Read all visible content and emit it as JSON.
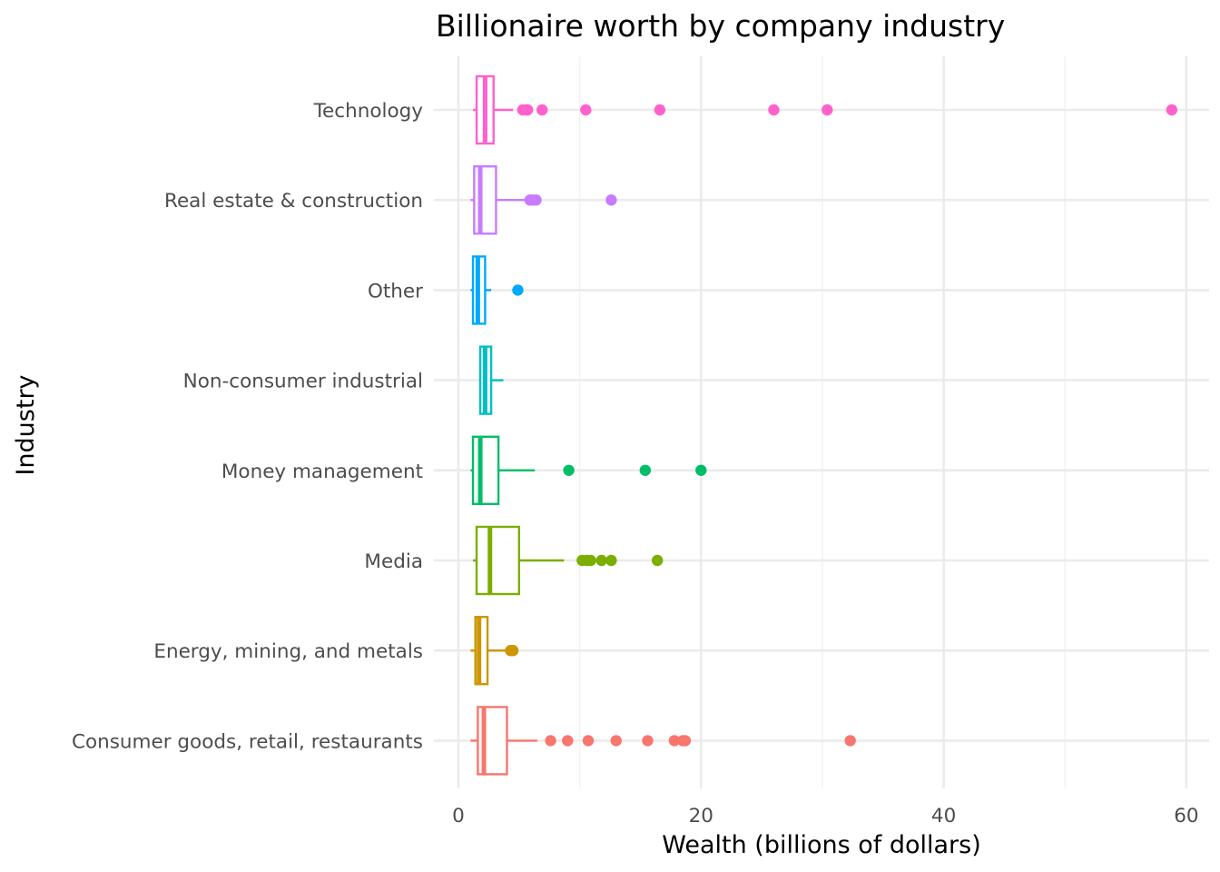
{
  "chart_data": {
    "type": "boxplot",
    "orientation": "horizontal",
    "title": "Billionaire worth by company industry",
    "xlabel": "Wealth (billions of dollars)",
    "ylabel": "Industry",
    "xlim": [
      -0.5,
      61.5
    ],
    "x_ticks": [
      0,
      20,
      40,
      60
    ],
    "grid": true,
    "legend": "none",
    "categories": [
      "Consumer goods, retail, restaurants",
      "Energy, mining, and metals",
      "Media",
      "Money management",
      "Non-consumer industrial",
      "Other",
      "Real estate & construction",
      "Technology"
    ],
    "series": [
      {
        "category": "Consumer goods, retail, restaurants",
        "color": "#F8766D",
        "min": 1.0,
        "q1": 1.6,
        "median": 2.1,
        "q3": 4.0,
        "max": 6.5,
        "outliers": [
          7.6,
          9.0,
          10.7,
          13.0,
          15.6,
          17.8,
          18.5,
          18.7,
          32.3
        ]
      },
      {
        "category": "Energy, mining, and metals",
        "color": "#CD9600",
        "min": 1.0,
        "q1": 1.4,
        "median": 1.7,
        "q3": 2.4,
        "max": 3.9,
        "outliers": [
          4.3,
          4.5
        ]
      },
      {
        "category": "Media",
        "color": "#7CAE00",
        "min": 1.2,
        "q1": 1.5,
        "median": 2.6,
        "q3": 5.0,
        "max": 8.7,
        "outliers": [
          10.2,
          10.6,
          10.9,
          11.8,
          12.6,
          16.4
        ]
      },
      {
        "category": "Money management",
        "color": "#00BE67",
        "min": 1.0,
        "q1": 1.2,
        "median": 1.8,
        "q3": 3.3,
        "max": 6.3,
        "outliers": [
          9.1,
          15.4,
          20.0
        ]
      },
      {
        "category": "Non-consumer industrial",
        "color": "#00BFC4",
        "min": 1.7,
        "q1": 1.8,
        "median": 2.2,
        "q3": 2.7,
        "max": 3.7,
        "outliers": []
      },
      {
        "category": "Other",
        "color": "#00A9FF",
        "min": 1.0,
        "q1": 1.2,
        "median": 1.6,
        "q3": 2.2,
        "max": 2.7,
        "outliers": [
          4.9
        ]
      },
      {
        "category": "Real estate & construction",
        "color": "#C77CFF",
        "min": 1.0,
        "q1": 1.3,
        "median": 1.8,
        "q3": 3.1,
        "max": 5.6,
        "outliers": [
          5.9,
          6.1,
          6.4,
          12.6
        ]
      },
      {
        "category": "Technology",
        "color": "#FF61CC",
        "min": 1.2,
        "q1": 1.5,
        "median": 2.2,
        "q3": 2.9,
        "max": 4.5,
        "outliers": [
          5.3,
          5.6,
          5.7,
          6.9,
          10.5,
          16.6,
          26.0,
          30.4,
          58.8
        ]
      }
    ]
  }
}
